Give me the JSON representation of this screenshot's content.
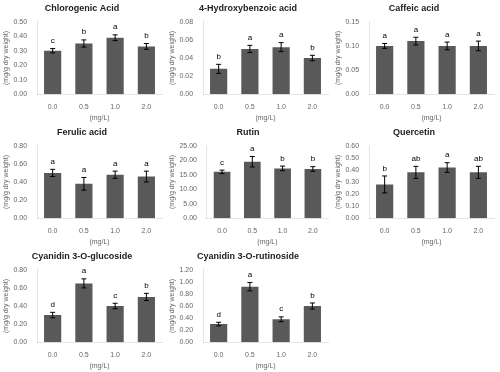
{
  "chart_data": [
    {
      "type": "bar",
      "title": "Chlorogenic Acid",
      "xlabel": "(mg/L)",
      "ylabel": "(mg/g dry weight)",
      "categories": [
        "0.0",
        "0.5",
        "1.0",
        "2.0"
      ],
      "values": [
        0.3,
        0.35,
        0.39,
        0.33
      ],
      "errors": [
        0.015,
        0.025,
        0.02,
        0.02
      ],
      "annotations": [
        "c",
        "b",
        "a",
        "b"
      ],
      "color": "#595959",
      "grid": false,
      "ylim": [
        0.0,
        0.5
      ],
      "yticks": [
        {
          "value": 0.0,
          "label": "0.00"
        },
        {
          "value": 0.1,
          "label": "0.10"
        },
        {
          "value": 0.2,
          "label": "0.20"
        },
        {
          "value": 0.3,
          "label": "0.30"
        },
        {
          "value": 0.4,
          "label": "0.40"
        },
        {
          "value": 0.5,
          "label": "0.50"
        }
      ]
    },
    {
      "type": "bar",
      "title": "4-Hydroxybenzoic acid",
      "xlabel": "(mg/L)",
      "ylabel": "(mg/g dry weight)",
      "categories": [
        "0.0",
        "0.5",
        "1.0",
        "2.0"
      ],
      "values": [
        0.028,
        0.05,
        0.052,
        0.04
      ],
      "errors": [
        0.005,
        0.004,
        0.005,
        0.003
      ],
      "annotations": [
        "b",
        "a",
        "a",
        "b"
      ],
      "color": "#595959",
      "grid": false,
      "ylim": [
        0.0,
        0.08
      ],
      "yticks": [
        {
          "value": 0.0,
          "label": "0.00"
        },
        {
          "value": 0.02,
          "label": "0.02"
        },
        {
          "value": 0.04,
          "label": "0.04"
        },
        {
          "value": 0.06,
          "label": "0.06"
        },
        {
          "value": 0.08,
          "label": "0.08"
        }
      ]
    },
    {
      "type": "bar",
      "title": "Caffeic acid",
      "xlabel": "(mg/L)",
      "ylabel": "(mg/g dry weight)",
      "categories": [
        "0.0",
        "0.5",
        "1.0",
        "2.0"
      ],
      "values": [
        0.1,
        0.11,
        0.1,
        0.1
      ],
      "errors": [
        0.005,
        0.008,
        0.008,
        0.01
      ],
      "annotations": [
        "a",
        "a",
        "a",
        "a"
      ],
      "color": "#595959",
      "grid": false,
      "ylim": [
        0.0,
        0.15
      ],
      "yticks": [
        {
          "value": 0.0,
          "label": "0.00"
        },
        {
          "value": 0.05,
          "label": "0.05"
        },
        {
          "value": 0.1,
          "label": "0.10"
        },
        {
          "value": 0.15,
          "label": "0.15"
        }
      ]
    },
    {
      "type": "bar",
      "title": "Ferulic acid",
      "xlabel": "(mg/L)",
      "ylabel": "(mg/g dry weight)",
      "categories": [
        "0.0",
        "0.5",
        "1.0",
        "2.0"
      ],
      "values": [
        0.5,
        0.38,
        0.48,
        0.46
      ],
      "errors": [
        0.04,
        0.07,
        0.04,
        0.06
      ],
      "annotations": [
        "a",
        "a",
        "a",
        "a"
      ],
      "color": "#595959",
      "grid": false,
      "ylim": [
        0.0,
        0.8
      ],
      "yticks": [
        {
          "value": 0.0,
          "label": "0.00"
        },
        {
          "value": 0.2,
          "label": "0.20"
        },
        {
          "value": 0.4,
          "label": "0.40"
        },
        {
          "value": 0.6,
          "label": "0.60"
        },
        {
          "value": 0.8,
          "label": "0.80"
        }
      ]
    },
    {
      "type": "bar",
      "title": "Rutin",
      "xlabel": "(mg/L)",
      "ylabel": "(mg/g dry weight)",
      "categories": [
        "0.0",
        "0.5",
        "1.0",
        "2.0"
      ],
      "values": [
        16.0,
        19.5,
        17.2,
        17.0
      ],
      "errors": [
        0.6,
        1.8,
        0.8,
        0.8
      ],
      "annotations": [
        "c",
        "a",
        "b",
        "b"
      ],
      "color": "#595959",
      "grid": false,
      "ylim": [
        0.0,
        25.0
      ],
      "yticks": [
        {
          "value": 0.0,
          "label": "0.00"
        },
        {
          "value": 5.0,
          "label": "5.00"
        },
        {
          "value": 10.0,
          "label": "10.00"
        },
        {
          "value": 15.0,
          "label": "15.00"
        },
        {
          "value": 20.0,
          "label": "20.00"
        },
        {
          "value": 25.0,
          "label": "25.00"
        }
      ]
    },
    {
      "type": "bar",
      "title": "Quercetin",
      "xlabel": "(mg/L)",
      "ylabel": "(mg/g dry weight)",
      "categories": [
        "0.0",
        "0.5",
        "1.0",
        "2.0"
      ],
      "values": [
        0.28,
        0.38,
        0.42,
        0.38
      ],
      "errors": [
        0.07,
        0.05,
        0.04,
        0.05
      ],
      "annotations": [
        "b",
        "ab",
        "a",
        "ab"
      ],
      "color": "#595959",
      "grid": false,
      "ylim": [
        0.0,
        0.6
      ],
      "yticks": [
        {
          "value": 0.0,
          "label": "0.00"
        },
        {
          "value": 0.1,
          "label": "0.10"
        },
        {
          "value": 0.2,
          "label": "0.20"
        },
        {
          "value": 0.3,
          "label": "0.30"
        },
        {
          "value": 0.4,
          "label": "0.40"
        },
        {
          "value": 0.5,
          "label": "0.50"
        },
        {
          "value": 0.6,
          "label": "0.60"
        }
      ]
    },
    {
      "type": "bar",
      "title": "Cyanidin 3-O-glucoside",
      "xlabel": "(mg/L)",
      "ylabel": "(mg/g dry weight)",
      "categories": [
        "0.0",
        "0.5",
        "1.0",
        "2.0"
      ],
      "values": [
        0.3,
        0.65,
        0.4,
        0.5
      ],
      "errors": [
        0.03,
        0.05,
        0.03,
        0.04
      ],
      "annotations": [
        "d",
        "a",
        "c",
        "b"
      ],
      "color": "#595959",
      "grid": false,
      "ylim": [
        0.0,
        0.8
      ],
      "yticks": [
        {
          "value": 0.0,
          "label": "0.00"
        },
        {
          "value": 0.2,
          "label": "0.20"
        },
        {
          "value": 0.4,
          "label": "0.40"
        },
        {
          "value": 0.6,
          "label": "0.60"
        },
        {
          "value": 0.8,
          "label": "0.80"
        }
      ]
    },
    {
      "type": "bar",
      "title": "Cyanidin 3-O-rutinoside",
      "xlabel": "(mg/L)",
      "ylabel": "(mg/g dry weight)",
      "categories": [
        "0.0",
        "0.5",
        "1.0",
        "2.0"
      ],
      "values": [
        0.3,
        0.92,
        0.38,
        0.6
      ],
      "errors": [
        0.03,
        0.07,
        0.04,
        0.05
      ],
      "annotations": [
        "d",
        "a",
        "c",
        "b"
      ],
      "color": "#595959",
      "grid": false,
      "ylim": [
        0.0,
        1.2
      ],
      "yticks": [
        {
          "value": 0.0,
          "label": "0.00"
        },
        {
          "value": 0.2,
          "label": "0.20"
        },
        {
          "value": 0.4,
          "label": "0.40"
        },
        {
          "value": 0.6,
          "label": "0.60"
        },
        {
          "value": 0.8,
          "label": "0.80"
        },
        {
          "value": 1.0,
          "label": "1.00"
        },
        {
          "value": 1.2,
          "label": "1.20"
        }
      ]
    }
  ]
}
